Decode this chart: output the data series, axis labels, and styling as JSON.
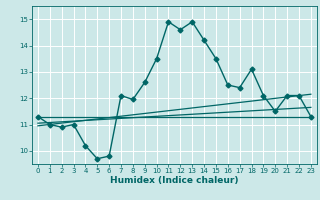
{
  "title": "",
  "xlabel": "Humidex (Indice chaleur)",
  "ylabel": "",
  "xlim": [
    -0.5,
    23.5
  ],
  "ylim": [
    9.5,
    15.5
  ],
  "yticks": [
    10,
    11,
    12,
    13,
    14,
    15
  ],
  "xticks": [
    0,
    1,
    2,
    3,
    4,
    5,
    6,
    7,
    8,
    9,
    10,
    11,
    12,
    13,
    14,
    15,
    16,
    17,
    18,
    19,
    20,
    21,
    22,
    23
  ],
  "background_color": "#cce8e8",
  "grid_color": "#ffffff",
  "line_color": "#006666",
  "series": [
    {
      "x": [
        0,
        1,
        2,
        3,
        4,
        5,
        6,
        7,
        8,
        9,
        10,
        11,
        12,
        13,
        14,
        15,
        16,
        17,
        18,
        19,
        20,
        21,
        22,
        23
      ],
      "y": [
        11.3,
        11.0,
        10.9,
        11.0,
        10.2,
        9.7,
        9.8,
        12.1,
        11.95,
        12.6,
        13.5,
        14.9,
        14.6,
        14.9,
        14.2,
        13.5,
        12.5,
        12.4,
        13.1,
        12.1,
        11.5,
        12.1,
        12.1,
        11.3
      ],
      "marker": "D",
      "markersize": 2.5,
      "linewidth": 1.0,
      "has_marker": true
    },
    {
      "x": [
        0,
        23
      ],
      "y": [
        11.3,
        11.3
      ],
      "has_marker": false,
      "linewidth": 0.9
    },
    {
      "x": [
        0,
        23
      ],
      "y": [
        11.05,
        11.65
      ],
      "has_marker": false,
      "linewidth": 0.9
    },
    {
      "x": [
        0,
        23
      ],
      "y": [
        10.95,
        12.15
      ],
      "has_marker": false,
      "linewidth": 0.9
    }
  ]
}
